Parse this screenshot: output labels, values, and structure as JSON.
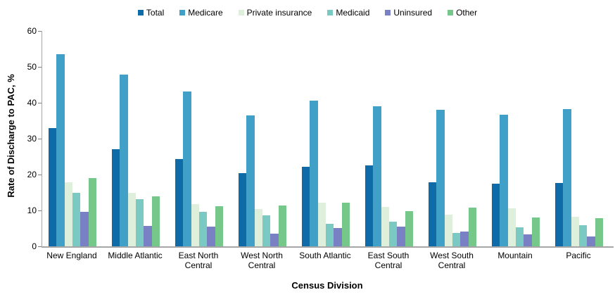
{
  "y_axis_title": "Rate of Discharge to PAC, %",
  "x_axis_title": "Census Division",
  "colors": {
    "axis_line": "#a6a6a6",
    "tick_mark": "#7f7f7f"
  },
  "chart_data": {
    "type": "bar",
    "title": "",
    "xlabel": "Census Division",
    "ylabel": "Rate of Discharge to PAC, %",
    "ylim": [
      0,
      60
    ],
    "ytick_step": 10,
    "grid": false,
    "legend_position": "top-center",
    "categories": [
      "New England",
      "Middle Atlantic",
      "East North Central",
      "West North Central",
      "South Atlantic",
      "East South Central",
      "West South Central",
      "Mountain",
      "Pacific"
    ],
    "series": [
      {
        "name": "Total",
        "color": "#0e6ba8",
        "values": [
          33.0,
          27.1,
          24.3,
          20.3,
          22.2,
          22.5,
          17.8,
          17.5,
          17.6
        ]
      },
      {
        "name": "Medicare",
        "color": "#41a0c8",
        "values": [
          53.6,
          47.9,
          43.1,
          36.5,
          40.6,
          39.0,
          38.0,
          36.6,
          38.2
        ]
      },
      {
        "name": "Private insurance",
        "color": "#def0dc",
        "values": [
          17.8,
          15.0,
          11.8,
          10.3,
          12.1,
          11.0,
          8.8,
          10.5,
          8.2
        ]
      },
      {
        "name": "Medicaid",
        "color": "#7acac3",
        "values": [
          15.0,
          13.1,
          9.6,
          8.7,
          6.3,
          6.9,
          3.7,
          5.2,
          5.9
        ]
      },
      {
        "name": "Uninsured",
        "color": "#7a80c4",
        "values": [
          9.7,
          5.7,
          5.5,
          3.6,
          5.1,
          5.5,
          4.2,
          3.3,
          2.7
        ]
      },
      {
        "name": "Other",
        "color": "#76c88a",
        "values": [
          19.1,
          13.9,
          11.1,
          11.3,
          12.2,
          9.8,
          10.8,
          8.0,
          7.8
        ]
      }
    ]
  }
}
